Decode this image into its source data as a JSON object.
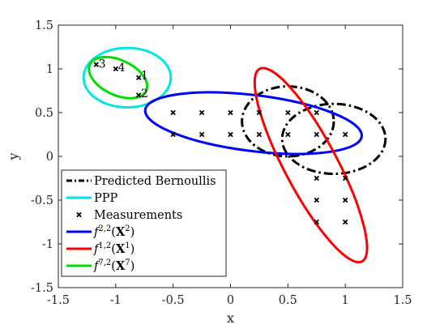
{
  "chart_data": {
    "type": "scatter",
    "title": "",
    "xlabel": "x",
    "ylabel": "y",
    "xlim": [
      -1.5,
      1.5
    ],
    "ylim": [
      -1.5,
      1.5
    ],
    "xticks": [
      -1.5,
      -1,
      -0.5,
      0,
      0.5,
      1,
      1.5
    ],
    "yticks": [
      -1.5,
      -1,
      -0.5,
      0,
      0.5,
      1,
      1.5
    ],
    "xtick_labels": [
      "-1.5",
      "-1",
      "-0.5",
      "0",
      "0.5",
      "1",
      "1.5"
    ],
    "ytick_labels": [
      "-1.5",
      "-1",
      "-0.5",
      "0",
      "0.5",
      "1",
      "1.5"
    ],
    "grid": false,
    "legend_position": "bottom-left",
    "series": [
      {
        "name": "Predicted Bernoullis",
        "kind": "ellipse",
        "color": "#000000",
        "dash": "dashdot",
        "ellipses": [
          {
            "center": [
              0.5,
              0.4
            ],
            "rx": 0.4,
            "ry": 0.4,
            "angle_deg": 0
          },
          {
            "center": [
              0.9,
              0.2
            ],
            "rx": 0.45,
            "ry": 0.4,
            "angle_deg": 0
          }
        ]
      },
      {
        "name": "PPP",
        "kind": "ellipse",
        "color": "#00e5e5",
        "dash": "solid",
        "ellipses": [
          {
            "center": [
              -0.9,
              0.9
            ],
            "rx": 0.38,
            "ry": 0.34,
            "angle_deg": 0
          }
        ]
      },
      {
        "name": "Measurements",
        "kind": "points",
        "color": "#000000",
        "points": [
          [
            -1.17,
            1.05
          ],
          [
            -1.0,
            1.0
          ],
          [
            -0.8,
            0.9
          ],
          [
            -0.8,
            0.7
          ],
          [
            -0.5,
            0.5
          ],
          [
            -0.25,
            0.5
          ],
          [
            0,
            0.5
          ],
          [
            0.25,
            0.5
          ],
          [
            0.5,
            0.5
          ],
          [
            0.75,
            0.5
          ],
          [
            -0.5,
            0.25
          ],
          [
            -0.25,
            0.25
          ],
          [
            0,
            0.25
          ],
          [
            0.25,
            0.25
          ],
          [
            0.5,
            0.25
          ],
          [
            0.75,
            0.25
          ],
          [
            1.0,
            0.25
          ],
          [
            0.75,
            -0.25
          ],
          [
            1.0,
            -0.25
          ],
          [
            0.75,
            -0.5
          ],
          [
            1.0,
            -0.5
          ],
          [
            0.75,
            -0.75
          ],
          [
            1.0,
            -0.75
          ]
        ]
      },
      {
        "name": "f2,2(X2)",
        "kind": "ellipse",
        "color": "#0000ff",
        "dash": "solid",
        "ellipses": [
          {
            "center": [
              0.2,
              0.38
            ],
            "rx": 0.95,
            "ry": 0.32,
            "angle_deg": -7
          }
        ]
      },
      {
        "name": "f1,2(X1)",
        "kind": "ellipse",
        "color": "#ff0000",
        "dash": "solid",
        "ellipses": [
          {
            "center": [
              0.7,
              -0.1
            ],
            "rx": 0.95,
            "ry": 0.3,
            "angle_deg": -62
          }
        ]
      },
      {
        "name": "f7,2(X7)",
        "kind": "ellipse",
        "color": "#00dd00",
        "dash": "solid",
        "ellipses": [
          {
            "center": [
              -0.98,
              0.9
            ],
            "rx": 0.27,
            "ry": 0.2,
            "angle_deg": -25
          }
        ]
      }
    ],
    "annotations": [
      {
        "text": "1",
        "x": -0.78,
        "y": 0.93
      },
      {
        "text": "2",
        "x": -0.78,
        "y": 0.72
      },
      {
        "text": "3",
        "x": -1.15,
        "y": 1.06
      },
      {
        "text": "4",
        "x": -0.98,
        "y": 1.02
      }
    ]
  },
  "legend": {
    "entries": [
      {
        "label": "Predicted Bernoullis",
        "sup": "",
        "bold": "",
        "color": "#000000",
        "style": "dashdot"
      },
      {
        "label": "PPP",
        "sup": "",
        "bold": "",
        "color": "#00e5e5",
        "style": "solid"
      },
      {
        "label": "Measurements",
        "sup": "",
        "bold": "",
        "color": "#000000",
        "style": "marker"
      },
      {
        "label": "f",
        "sup": "2,2",
        "bold": "X",
        "boldsup": "2",
        "color": "#0000ff",
        "style": "solid"
      },
      {
        "label": "f",
        "sup": "1,2",
        "bold": "X",
        "boldsup": "1",
        "color": "#ff0000",
        "style": "solid"
      },
      {
        "label": "f",
        "sup": "7,2",
        "bold": "X",
        "boldsup": "7",
        "color": "#00dd00",
        "style": "solid"
      }
    ]
  }
}
